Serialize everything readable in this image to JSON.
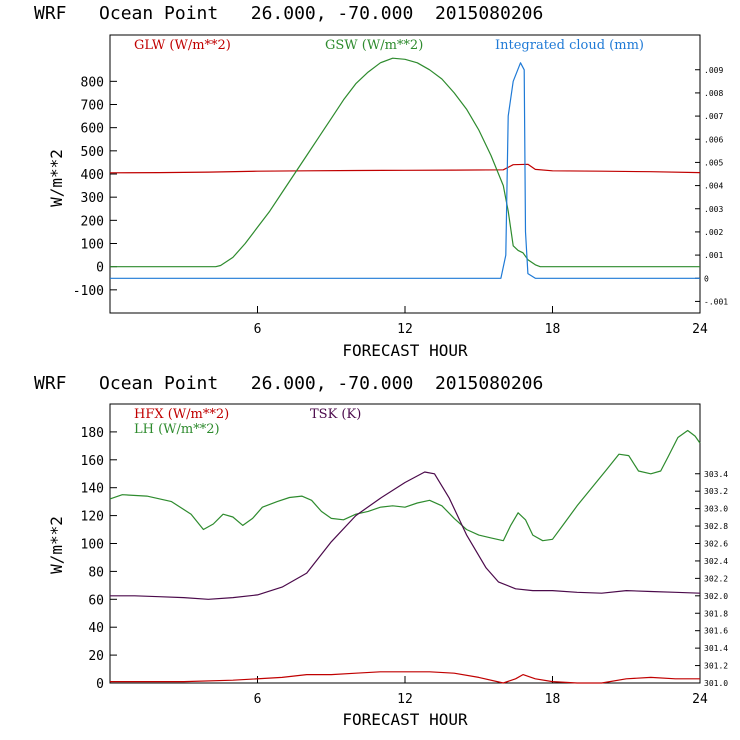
{
  "colors": {
    "red": "#c00000",
    "green": "#2e8b2e",
    "blue": "#1f7ad6",
    "purple": "#4b0a4b",
    "frame": "#000000"
  },
  "chart_data": [
    {
      "type": "line",
      "title": "WRF   Ocean Point   26.000, -70.000  2015080206",
      "xlabel": "FORECAST HOUR",
      "ylabel": "W/m**2",
      "xlim": [
        0,
        24
      ],
      "ylim": [
        -200,
        1000
      ],
      "xticks": [
        6,
        12,
        18,
        24
      ],
      "yticks": [
        -100,
        0,
        100,
        200,
        300,
        400,
        500,
        600,
        700,
        800
      ],
      "y2lim": [
        -0.0015,
        0.0105
      ],
      "y2ticks": [
        -0.001,
        0.0,
        0.001,
        0.002,
        0.003,
        0.004,
        0.005,
        0.006,
        0.007,
        0.008,
        0.009
      ],
      "y2ticklabels": [
        "-.001",
        "0",
        ".001",
        ".002",
        ".003",
        ".004",
        ".005",
        ".006",
        ".007",
        ".008",
        ".009"
      ],
      "series": [
        {
          "name": "GLW (W/m**2)",
          "color": "#c00000",
          "axis": "left",
          "points": [
            [
              0,
              405
            ],
            [
              2,
              406
            ],
            [
              4,
              408
            ],
            [
              6,
              412
            ],
            [
              8,
              414
            ],
            [
              10,
              415
            ],
            [
              12,
              416
            ],
            [
              14,
              417
            ],
            [
              16,
              418
            ],
            [
              16.4,
              440
            ],
            [
              17,
              442
            ],
            [
              17.3,
              420
            ],
            [
              18,
              414
            ],
            [
              20,
              412
            ],
            [
              22,
              410
            ],
            [
              24,
              406
            ]
          ]
        },
        {
          "name": "GSW (W/m**2)",
          "color": "#2e8b2e",
          "axis": "left",
          "points": [
            [
              0,
              0
            ],
            [
              4.3,
              0
            ],
            [
              4.5,
              5
            ],
            [
              5,
              40
            ],
            [
              5.5,
              100
            ],
            [
              6,
              170
            ],
            [
              6.5,
              240
            ],
            [
              7,
              320
            ],
            [
              7.5,
              400
            ],
            [
              8,
              480
            ],
            [
              8.5,
              560
            ],
            [
              9,
              640
            ],
            [
              9.5,
              720
            ],
            [
              10,
              790
            ],
            [
              10.5,
              840
            ],
            [
              11,
              880
            ],
            [
              11.5,
              900
            ],
            [
              12,
              895
            ],
            [
              12.5,
              880
            ],
            [
              13,
              850
            ],
            [
              13.5,
              810
            ],
            [
              14,
              750
            ],
            [
              14.5,
              680
            ],
            [
              15,
              590
            ],
            [
              15.5,
              480
            ],
            [
              16,
              350
            ],
            [
              16.2,
              240
            ],
            [
              16.4,
              90
            ],
            [
              16.6,
              70
            ],
            [
              16.8,
              60
            ],
            [
              17,
              30
            ],
            [
              17.3,
              8
            ],
            [
              17.5,
              0
            ],
            [
              24,
              0
            ]
          ]
        },
        {
          "name": "Integrated cloud (mm)",
          "color": "#1f7ad6",
          "axis": "right",
          "points": [
            [
              0,
              0
            ],
            [
              15.9,
              0
            ],
            [
              16.1,
              0.001
            ],
            [
              16.2,
              0.007
            ],
            [
              16.4,
              0.0085
            ],
            [
              16.7,
              0.0093
            ],
            [
              16.85,
              0.009
            ],
            [
              16.9,
              0.002
            ],
            [
              17.0,
              0.0002
            ],
            [
              17.3,
              0
            ],
            [
              24,
              0
            ]
          ]
        }
      ]
    },
    {
      "type": "line",
      "title": "WRF   Ocean Point   26.000, -70.000  2015080206",
      "xlabel": "FORECAST HOUR",
      "ylabel": "W/m**2",
      "xlim": [
        0,
        24
      ],
      "ylim": [
        0,
        200
      ],
      "xticks": [
        6,
        12,
        18,
        24
      ],
      "yticks": [
        0,
        20,
        40,
        60,
        80,
        100,
        120,
        140,
        160,
        180
      ],
      "y2lim": [
        301.0,
        304.2
      ],
      "y2ticks": [
        301.0,
        301.2,
        301.4,
        301.6,
        301.8,
        302.0,
        302.2,
        302.4,
        302.6,
        302.8,
        303.0,
        303.2,
        303.4
      ],
      "y2ticklabels": [
        "301.0",
        "301.2",
        "301.4",
        "301.6",
        "301.8",
        "302.0",
        "302.2",
        "302.4",
        "302.6",
        "302.8",
        "303.0",
        "303.2",
        "303.4"
      ],
      "series": [
        {
          "name": "HFX (W/m**2)",
          "color": "#c00000",
          "axis": "left",
          "points": [
            [
              0,
              1
            ],
            [
              3,
              1
            ],
            [
              5,
              2
            ],
            [
              7,
              4
            ],
            [
              8,
              6
            ],
            [
              9,
              6
            ],
            [
              10,
              7
            ],
            [
              11,
              8
            ],
            [
              12,
              8
            ],
            [
              13,
              8
            ],
            [
              14,
              7
            ],
            [
              15,
              4
            ],
            [
              16,
              0
            ],
            [
              16.5,
              3
            ],
            [
              16.8,
              6
            ],
            [
              17.3,
              3
            ],
            [
              18,
              1
            ],
            [
              19,
              0
            ],
            [
              20,
              0
            ],
            [
              21,
              3
            ],
            [
              22,
              4
            ],
            [
              23,
              3
            ],
            [
              24,
              3
            ]
          ]
        },
        {
          "name": "LH (W/m**2)",
          "color": "#2e8b2e",
          "axis": "left",
          "points": [
            [
              0,
              132
            ],
            [
              0.5,
              135
            ],
            [
              1.5,
              134
            ],
            [
              2.5,
              130
            ],
            [
              3.3,
              121
            ],
            [
              3.8,
              110
            ],
            [
              4.2,
              114
            ],
            [
              4.6,
              121
            ],
            [
              5,
              119
            ],
            [
              5.4,
              113
            ],
            [
              5.8,
              118
            ],
            [
              6.2,
              126
            ],
            [
              6.8,
              130
            ],
            [
              7.3,
              133
            ],
            [
              7.8,
              134
            ],
            [
              8.2,
              131
            ],
            [
              8.6,
              123
            ],
            [
              9,
              118
            ],
            [
              9.5,
              117
            ],
            [
              10,
              121
            ],
            [
              10.5,
              123
            ],
            [
              11,
              126
            ],
            [
              11.5,
              127
            ],
            [
              12,
              126
            ],
            [
              12.5,
              129
            ],
            [
              13,
              131
            ],
            [
              13.5,
              127
            ],
            [
              14,
              118
            ],
            [
              14.5,
              110
            ],
            [
              15,
              106
            ],
            [
              15.5,
              104
            ],
            [
              16,
              102
            ],
            [
              16.3,
              113
            ],
            [
              16.6,
              122
            ],
            [
              16.9,
              117
            ],
            [
              17.2,
              106
            ],
            [
              17.6,
              102
            ],
            [
              18,
              103
            ],
            [
              18.5,
              115
            ],
            [
              19,
              127
            ],
            [
              19.6,
              140
            ],
            [
              20.2,
              153
            ],
            [
              20.7,
              164
            ],
            [
              21.1,
              163
            ],
            [
              21.5,
              152
            ],
            [
              22,
              150
            ],
            [
              22.4,
              152
            ],
            [
              22.7,
              162
            ],
            [
              23.1,
              176
            ],
            [
              23.5,
              181
            ],
            [
              23.8,
              177
            ],
            [
              24,
              172
            ]
          ]
        },
        {
          "name": "TSK (K)",
          "color": "#4b0a4b",
          "axis": "right",
          "points": [
            [
              0,
              302.0
            ],
            [
              1,
              302.0
            ],
            [
              2,
              301.99
            ],
            [
              3,
              301.98
            ],
            [
              4,
              301.96
            ],
            [
              5,
              301.98
            ],
            [
              6,
              302.01
            ],
            [
              7,
              302.1
            ],
            [
              8,
              302.26
            ],
            [
              9,
              302.62
            ],
            [
              10,
              302.92
            ],
            [
              11,
              303.12
            ],
            [
              12,
              303.3
            ],
            [
              12.8,
              303.42
            ],
            [
              13.2,
              303.4
            ],
            [
              13.8,
              303.12
            ],
            [
              14.5,
              302.7
            ],
            [
              15.3,
              302.32
            ],
            [
              15.8,
              302.16
            ],
            [
              16.5,
              302.08
            ],
            [
              17.2,
              302.06
            ],
            [
              18,
              302.06
            ],
            [
              19,
              302.04
            ],
            [
              20,
              302.03
            ],
            [
              21,
              302.06
            ],
            [
              22,
              302.05
            ],
            [
              23,
              302.04
            ],
            [
              24,
              302.03
            ]
          ]
        }
      ]
    }
  ]
}
